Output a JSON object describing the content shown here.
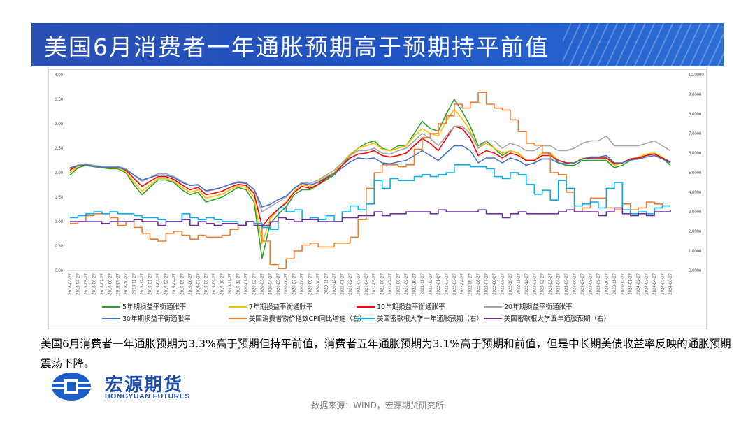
{
  "header": {
    "title": "美国6月消费者一年通胀预期高于预期持平前值"
  },
  "caption": "美国6月消费者一年通胀预期为3.3%高于预期但持平前值，消费者五年通胀预期为3.1%高于预期和前值，但是中长期美债收益率反映的通胀预期震荡下降。",
  "logo": {
    "name_cn": "宏源期货",
    "name_en": "HONGYUAN FUTURES"
  },
  "source": "数据来源：WIND，宏源期货研究所",
  "chart_data": {
    "type": "line",
    "x_ticks": [
      "2018-03-27",
      "2018-04-27",
      "2018-05-27",
      "2018-06-27",
      "2018-07-27",
      "2018-08-27",
      "2018-09-27",
      "2018-10-27",
      "2018-11-27",
      "2018-12-27",
      "2019-01-27",
      "2019-02-27",
      "2019-03-27",
      "2019-04-27",
      "2019-05-27",
      "2019-06-27",
      "2019-07-27",
      "2019-08-27",
      "2019-09-27",
      "2019-10-27",
      "2019-11-27",
      "2019-12-27",
      "2020-01-27",
      "2020-02-27",
      "2020-03-27",
      "2020-04-27",
      "2020-05-27",
      "2020-06-27",
      "2020-07-27",
      "2020-08-27",
      "2020-09-27",
      "2020-10-27",
      "2020-11-27",
      "2020-12-27",
      "2021-01-27",
      "2021-02-27",
      "2021-03-27",
      "2021-04-27",
      "2021-05-27",
      "2021-06-27",
      "2021-07-27",
      "2021-08-27",
      "2021-09-27",
      "2021-10-27",
      "2021-11-27",
      "2021-12-27",
      "2022-01-27",
      "2022-02-27",
      "2022-03-27",
      "2022-04-27",
      "2022-05-27",
      "2022-06-27",
      "2022-07-27",
      "2022-08-27",
      "2022-09-27",
      "2022-10-27",
      "2022-11-27",
      "2022-12-27",
      "2023-01-27",
      "2023-02-27",
      "2023-03-27",
      "2023-04-27",
      "2023-05-27",
      "2023-06-27",
      "2023-07-27",
      "2023-08-27",
      "2023-09-27",
      "2023-10-27",
      "2023-11-27",
      "2023-12-27",
      "2024-01-27",
      "2024-02-27",
      "2024-03-27",
      "2024-04-27",
      "2024-05-27",
      "2024-06-27"
    ],
    "y_left": {
      "ticks": [
        "0.00",
        "0.50",
        "1.00",
        "1.50",
        "2.00",
        "2.50",
        "3.00",
        "3.50",
        "4.00"
      ],
      "min": 0,
      "max": 4
    },
    "y_right": {
      "ticks": [
        "0.0000",
        "1.0000",
        "2.0000",
        "3.0000",
        "4.0000",
        "5.0000",
        "6.0000",
        "7.0000",
        "8.0000",
        "9.0000",
        "10.0000"
      ],
      "min": 0,
      "max": 10
    },
    "series": [
      {
        "name": "5年期损益平衡通胀率",
        "color": "#2ca02c",
        "axis": "left",
        "values": [
          1.95,
          2.1,
          2.15,
          2.12,
          2.1,
          2.08,
          2.08,
          2.0,
          1.75,
          1.55,
          1.7,
          1.85,
          1.85,
          1.8,
          1.65,
          1.55,
          1.6,
          1.4,
          1.45,
          1.5,
          1.6,
          1.7,
          1.65,
          1.4,
          0.25,
          0.95,
          1.15,
          1.3,
          1.55,
          1.65,
          1.65,
          1.75,
          1.85,
          1.95,
          2.15,
          2.35,
          2.5,
          2.6,
          2.65,
          2.5,
          2.45,
          2.55,
          2.55,
          2.8,
          3.05,
          2.9,
          2.85,
          3.2,
          3.5,
          3.25,
          2.95,
          2.55,
          2.65,
          2.5,
          2.35,
          2.45,
          2.4,
          2.25,
          2.25,
          2.4,
          2.4,
          2.2,
          2.15,
          2.15,
          2.25,
          2.25,
          2.25,
          2.25,
          2.1,
          2.15,
          2.25,
          2.3,
          2.35,
          2.4,
          2.3,
          2.15
        ]
      },
      {
        "name": "7年期损益平衡通胀率",
        "color": "#ffc000",
        "axis": "left",
        "values": [
          2.0,
          2.12,
          2.16,
          2.13,
          2.11,
          2.1,
          2.1,
          2.02,
          1.8,
          1.62,
          1.75,
          1.88,
          1.88,
          1.82,
          1.7,
          1.6,
          1.65,
          1.48,
          1.52,
          1.56,
          1.65,
          1.73,
          1.7,
          1.5,
          0.55,
          1.05,
          1.25,
          1.4,
          1.62,
          1.75,
          1.72,
          1.82,
          1.92,
          2.0,
          2.2,
          2.38,
          2.5,
          2.55,
          2.6,
          2.48,
          2.45,
          2.5,
          2.55,
          2.75,
          2.9,
          2.8,
          2.75,
          3.05,
          3.3,
          3.1,
          2.85,
          2.5,
          2.6,
          2.5,
          2.4,
          2.45,
          2.4,
          2.25,
          2.25,
          2.4,
          2.4,
          2.25,
          2.2,
          2.2,
          2.3,
          2.3,
          2.3,
          2.3,
          2.15,
          2.2,
          2.28,
          2.32,
          2.38,
          2.4,
          2.32,
          2.2
        ]
      },
      {
        "name": "10年期损益平衡通胀率",
        "color": "#ff0000",
        "axis": "left",
        "values": [
          2.05,
          2.15,
          2.18,
          2.14,
          2.12,
          2.12,
          2.12,
          2.05,
          1.88,
          1.72,
          1.82,
          1.92,
          1.92,
          1.86,
          1.75,
          1.65,
          1.7,
          1.55,
          1.58,
          1.62,
          1.7,
          1.76,
          1.74,
          1.58,
          0.9,
          1.1,
          1.25,
          1.38,
          1.6,
          1.72,
          1.68,
          1.76,
          1.88,
          1.98,
          2.15,
          2.3,
          2.38,
          2.4,
          2.45,
          2.35,
          2.32,
          2.35,
          2.4,
          2.55,
          2.7,
          2.6,
          2.45,
          2.7,
          2.95,
          2.9,
          2.7,
          2.35,
          2.45,
          2.4,
          2.3,
          2.4,
          2.35,
          2.25,
          2.25,
          2.35,
          2.35,
          2.25,
          2.2,
          2.2,
          2.28,
          2.3,
          2.3,
          2.3,
          2.18,
          2.2,
          2.28,
          2.3,
          2.35,
          2.38,
          2.3,
          2.22
        ]
      },
      {
        "name": "20年期损益平衡通胀率",
        "color": "#a6a6a6",
        "axis": "left",
        "values": [
          2.08,
          2.16,
          2.18,
          2.15,
          2.13,
          2.13,
          2.13,
          2.08,
          1.95,
          1.82,
          1.9,
          1.98,
          1.98,
          1.92,
          1.82,
          1.74,
          1.76,
          1.62,
          1.65,
          1.7,
          1.76,
          1.82,
          1.8,
          1.65,
          1.2,
          1.3,
          1.4,
          1.5,
          1.68,
          1.8,
          1.78,
          1.85,
          1.95,
          2.05,
          2.2,
          2.35,
          2.45,
          2.45,
          2.5,
          2.4,
          2.38,
          2.45,
          2.5,
          2.65,
          2.8,
          2.7,
          2.55,
          2.75,
          2.95,
          2.95,
          2.8,
          2.5,
          2.65,
          2.65,
          2.5,
          2.6,
          2.55,
          2.45,
          2.45,
          2.55,
          2.55,
          2.45,
          2.45,
          2.5,
          2.6,
          2.65,
          2.65,
          2.75,
          2.55,
          2.55,
          2.55,
          2.55,
          2.6,
          2.65,
          2.55,
          2.45
        ]
      },
      {
        "name": "30年期损益平衡通胀率",
        "color": "#4472c4",
        "axis": "left",
        "values": [
          2.1,
          2.14,
          2.16,
          2.13,
          2.11,
          2.11,
          2.11,
          2.06,
          1.95,
          1.85,
          1.9,
          1.95,
          1.95,
          1.9,
          1.8,
          1.74,
          1.75,
          1.63,
          1.66,
          1.7,
          1.76,
          1.8,
          1.78,
          1.66,
          1.3,
          1.35,
          1.45,
          1.52,
          1.68,
          1.78,
          1.75,
          1.8,
          1.9,
          1.98,
          2.1,
          2.22,
          2.3,
          2.28,
          2.3,
          2.2,
          2.18,
          2.22,
          2.25,
          2.35,
          2.45,
          2.35,
          2.25,
          2.4,
          2.55,
          2.55,
          2.45,
          2.2,
          2.3,
          2.3,
          2.2,
          2.3,
          2.25,
          2.15,
          2.2,
          2.28,
          2.28,
          2.2,
          2.18,
          2.2,
          2.28,
          2.32,
          2.32,
          2.35,
          2.2,
          2.2,
          2.26,
          2.28,
          2.32,
          2.35,
          2.28,
          2.2
        ]
      },
      {
        "name": "美国消费者物价指数CPI同比增速（右）",
        "color": "#ed7d31",
        "axis": "right",
        "values": [
          2.4,
          2.5,
          2.8,
          2.9,
          2.9,
          2.7,
          2.3,
          2.5,
          2.2,
          1.9,
          1.6,
          1.5,
          1.9,
          2.0,
          1.8,
          1.6,
          1.8,
          1.7,
          1.7,
          1.8,
          2.1,
          2.3,
          2.5,
          2.3,
          1.5,
          0.3,
          0.1,
          0.6,
          1.0,
          1.3,
          1.4,
          1.2,
          1.2,
          1.4,
          1.4,
          1.7,
          2.6,
          4.2,
          5.0,
          5.4,
          5.4,
          5.3,
          5.4,
          6.2,
          6.8,
          7.0,
          7.5,
          7.9,
          8.5,
          8.3,
          8.6,
          9.1,
          8.5,
          8.3,
          8.2,
          7.7,
          7.1,
          6.5,
          6.4,
          6.0,
          5.0,
          4.9,
          4.0,
          3.0,
          3.2,
          3.7,
          3.7,
          3.2,
          3.1,
          3.4,
          3.1,
          3.2,
          3.5,
          3.4,
          3.3,
          3.3
        ]
      },
      {
        "name": "美国密歇根大学一年通胀预期（右）",
        "color": "#00b0f0",
        "axis": "right",
        "values": [
          2.7,
          2.8,
          2.9,
          3.0,
          2.9,
          3.0,
          2.9,
          2.9,
          2.8,
          2.7,
          2.7,
          2.6,
          2.5,
          2.5,
          2.9,
          2.7,
          2.6,
          2.7,
          2.6,
          2.5,
          2.5,
          2.3,
          2.5,
          2.4,
          2.2,
          2.1,
          3.2,
          3.0,
          3.1,
          2.6,
          2.7,
          2.6,
          2.8,
          2.5,
          3.0,
          3.3,
          3.1,
          3.4,
          4.6,
          4.2,
          4.7,
          4.6,
          4.6,
          4.8,
          4.9,
          4.8,
          4.9,
          5.0,
          5.4,
          5.4,
          5.3,
          5.3,
          5.2,
          4.8,
          4.7,
          5.0,
          4.9,
          4.4,
          3.9,
          4.1,
          3.6,
          4.6,
          4.2,
          3.3,
          3.4,
          3.5,
          3.2,
          4.2,
          4.5,
          3.1,
          2.9,
          3.0,
          2.9,
          3.2,
          3.3,
          3.3
        ]
      },
      {
        "name": "美国密歇根大学五年通胀预期（右）",
        "color": "#7030a0",
        "axis": "right",
        "values": [
          2.5,
          2.5,
          2.5,
          2.5,
          2.4,
          2.5,
          2.5,
          2.5,
          2.6,
          2.5,
          2.5,
          2.3,
          2.5,
          2.5,
          2.6,
          2.3,
          2.5,
          2.4,
          2.3,
          2.4,
          2.4,
          2.3,
          2.5,
          2.3,
          2.3,
          2.5,
          2.7,
          2.6,
          2.5,
          2.6,
          2.6,
          2.5,
          2.5,
          2.5,
          2.7,
          2.7,
          2.8,
          2.8,
          3.0,
          2.8,
          2.9,
          2.9,
          3.0,
          3.0,
          3.0,
          2.9,
          3.1,
          3.0,
          3.0,
          3.0,
          3.0,
          3.1,
          2.9,
          2.9,
          2.7,
          2.9,
          3.0,
          2.9,
          2.9,
          2.9,
          2.9,
          3.0,
          3.1,
          3.0,
          3.0,
          3.0,
          2.8,
          3.0,
          3.2,
          2.9,
          2.8,
          2.9,
          2.8,
          3.0,
          3.0,
          3.1
        ]
      }
    ]
  }
}
